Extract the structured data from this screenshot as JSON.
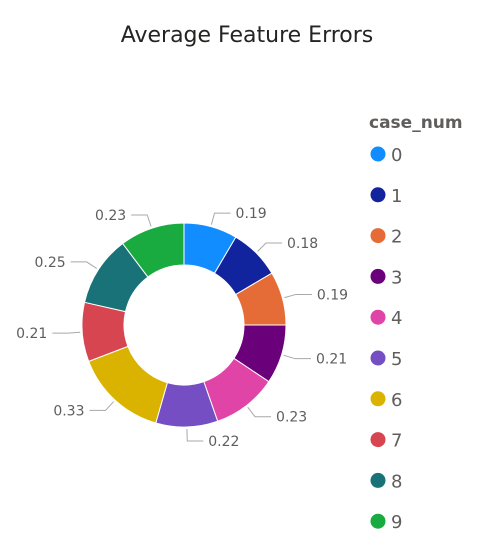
{
  "chart_data": {
    "type": "pie",
    "title": "Average Feature Errors",
    "legend_title": "case_num",
    "legend_position": "right",
    "categories": [
      "0",
      "1",
      "2",
      "3",
      "4",
      "5",
      "6",
      "7",
      "8",
      "9"
    ],
    "values": [
      0.19,
      0.18,
      0.19,
      0.21,
      0.23,
      0.22,
      0.33,
      0.21,
      0.25,
      0.23
    ],
    "labels": [
      "0.19",
      "0.18",
      "0.19",
      "0.21",
      "0.23",
      "0.22",
      "0.33",
      "0.21",
      "0.25",
      "0.23"
    ],
    "colors": [
      "#118DFF",
      "#12239E",
      "#E66C37",
      "#6B007B",
      "#E044A7",
      "#744EC2",
      "#D9B300",
      "#D64550",
      "#197278",
      "#1AAB40"
    ],
    "donut": true
  }
}
